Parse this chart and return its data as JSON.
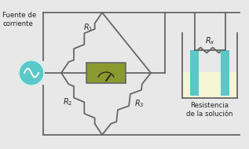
{
  "bg_color": "#e8e8e8",
  "wire_color": "#666666",
  "source_color": "#5ac8c8",
  "galvanometer_bg": "#8a9a30",
  "galvanometer_border": "#555555",
  "solution_bg": "#f5f5d5",
  "electrode_color": "#5ac8c8",
  "text_color": "#222222",
  "label_fuente": "Fuente de\ncorriente",
  "label_R1": "$R_1$",
  "label_R2": "$R_2$",
  "label_R3": "$R_3$",
  "label_Rx": "$R_x$",
  "label_resistencia": "Resistencia\nde la solución"
}
